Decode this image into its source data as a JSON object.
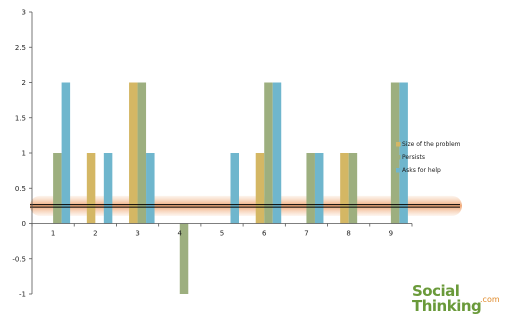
{
  "chart_data": {
    "type": "bar",
    "categories": [
      "1",
      "2",
      "3",
      "4",
      "5",
      "6",
      "7",
      "8",
      "9"
    ],
    "series": [
      {
        "name": "Size of the problem",
        "color": "#d4b764",
        "values": [
          0,
          1,
          2,
          0,
          0,
          1,
          0,
          1,
          0
        ]
      },
      {
        "name": "Persists",
        "color": "#9daf7f",
        "values": [
          1,
          0,
          2,
          -1,
          0,
          2,
          1,
          1,
          2
        ]
      },
      {
        "name": "Asks for help",
        "color": "#6fb6cd",
        "values": [
          2,
          1,
          1,
          0,
          1,
          2,
          1,
          0,
          2
        ]
      }
    ],
    "y_ticks": [
      "3",
      "2.5",
      "2",
      "1.5",
      "1",
      "0.5",
      "0",
      "-0.5",
      "-1"
    ],
    "ylim": [
      -1,
      3
    ],
    "reference_line_value": 0.25,
    "legend_position": "right",
    "grid": false
  },
  "logo": {
    "line1": "Social",
    "line2": "Thinking",
    "suffix": ".com"
  }
}
